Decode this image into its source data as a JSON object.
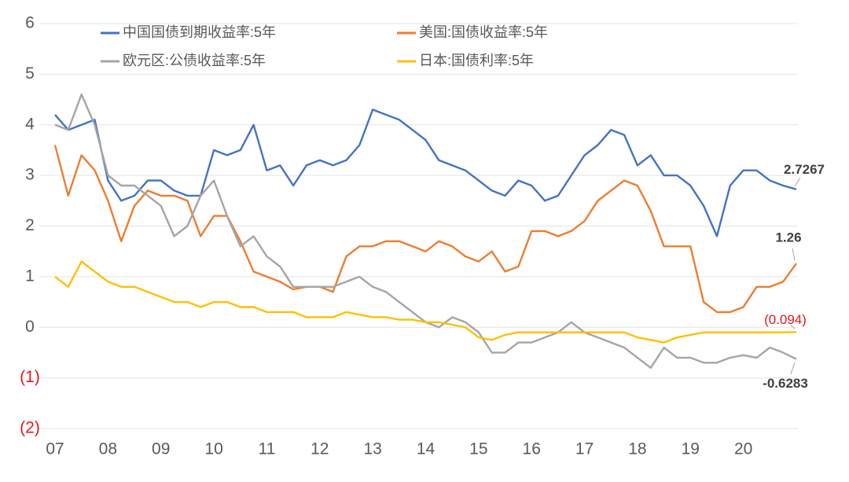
{
  "chart_data": {
    "type": "line",
    "x": [
      7,
      7.25,
      7.5,
      7.75,
      8,
      8.25,
      8.5,
      8.75,
      9,
      9.25,
      9.5,
      9.75,
      10,
      10.25,
      10.5,
      10.75,
      11,
      11.25,
      11.5,
      11.75,
      12,
      12.25,
      12.5,
      12.75,
      13,
      13.25,
      13.5,
      13.75,
      14,
      14.25,
      14.5,
      14.75,
      15,
      15.25,
      15.5,
      15.75,
      16,
      16.25,
      16.5,
      16.75,
      17,
      17.25,
      17.5,
      17.75,
      18,
      18.25,
      18.5,
      18.75,
      19,
      19.25,
      19.5,
      19.75,
      20,
      20.25,
      20.5,
      20.75,
      21
    ],
    "series": [
      {
        "name": "中国国债到期收益率:5年",
        "color": "#4472c4",
        "end_label": "2.7267",
        "values": [
          4.2,
          3.9,
          4.0,
          4.1,
          2.9,
          2.5,
          2.6,
          2.9,
          2.9,
          2.7,
          2.6,
          2.6,
          3.5,
          3.4,
          3.5,
          4.0,
          3.1,
          3.2,
          2.8,
          3.2,
          3.3,
          3.2,
          3.3,
          3.6,
          4.3,
          4.2,
          4.1,
          3.9,
          3.7,
          3.3,
          3.2,
          3.1,
          2.9,
          2.7,
          2.6,
          2.9,
          2.8,
          2.5,
          2.6,
          3.0,
          3.4,
          3.6,
          3.9,
          3.8,
          3.2,
          3.4,
          3.0,
          3.0,
          2.8,
          2.4,
          1.8,
          2.8,
          3.1,
          3.1,
          2.9,
          2.8,
          2.7267
        ]
      },
      {
        "name": "美国:国债收益率:5年",
        "color": "#ed7d31",
        "end_label": "1.26",
        "values": [
          3.6,
          2.6,
          3.4,
          3.1,
          2.5,
          1.7,
          2.4,
          2.7,
          2.6,
          2.6,
          2.5,
          1.8,
          2.2,
          2.2,
          1.7,
          1.1,
          1.0,
          0.9,
          0.75,
          0.8,
          0.8,
          0.7,
          1.4,
          1.6,
          1.6,
          1.7,
          1.7,
          1.6,
          1.5,
          1.7,
          1.6,
          1.4,
          1.3,
          1.5,
          1.1,
          1.2,
          1.9,
          1.9,
          1.8,
          1.9,
          2.1,
          2.5,
          2.7,
          2.9,
          2.8,
          2.3,
          1.6,
          1.6,
          1.6,
          0.5,
          0.3,
          0.3,
          0.4,
          0.8,
          0.8,
          0.9,
          1.26
        ]
      },
      {
        "name": "欧元区:公债收益率:5年",
        "color": "#a5a5a5",
        "end_label": "-0.6283",
        "values": [
          4.0,
          3.9,
          4.6,
          4.0,
          3.0,
          2.8,
          2.8,
          2.6,
          2.4,
          1.8,
          2.0,
          2.6,
          2.9,
          2.2,
          1.6,
          1.8,
          1.4,
          1.2,
          0.8,
          0.8,
          0.8,
          0.8,
          0.9,
          1.0,
          0.8,
          0.7,
          0.5,
          0.3,
          0.1,
          0.0,
          0.2,
          0.1,
          -0.1,
          -0.5,
          -0.5,
          -0.3,
          -0.3,
          -0.2,
          -0.1,
          0.1,
          -0.1,
          -0.2,
          -0.3,
          -0.4,
          -0.6,
          -0.8,
          -0.4,
          -0.6,
          -0.6,
          -0.7,
          -0.7,
          -0.6,
          -0.55,
          -0.6,
          -0.4,
          -0.5,
          -0.6283
        ]
      },
      {
        "name": "日本:国债利率:5年",
        "color": "#ffc000",
        "end_label": "(0.094)",
        "values": [
          1.0,
          0.8,
          1.3,
          1.1,
          0.9,
          0.8,
          0.8,
          0.7,
          0.6,
          0.5,
          0.5,
          0.4,
          0.5,
          0.5,
          0.4,
          0.4,
          0.3,
          0.3,
          0.3,
          0.2,
          0.2,
          0.2,
          0.3,
          0.25,
          0.2,
          0.2,
          0.15,
          0.15,
          0.1,
          0.1,
          0.05,
          0.0,
          -0.2,
          -0.25,
          -0.15,
          -0.1,
          -0.1,
          -0.1,
          -0.1,
          -0.1,
          -0.1,
          -0.1,
          -0.1,
          -0.1,
          -0.2,
          -0.25,
          -0.3,
          -0.2,
          -0.15,
          -0.1,
          -0.1,
          -0.1,
          -0.1,
          -0.1,
          -0.1,
          -0.1,
          -0.094
        ]
      }
    ],
    "xlim": [
      7,
      21
    ],
    "xticks": [
      {
        "value": 7,
        "label": "07"
      },
      {
        "value": 8,
        "label": "08"
      },
      {
        "value": 9,
        "label": "09"
      },
      10,
      11,
      12,
      13,
      14,
      15,
      16,
      17,
      18,
      19,
      20
    ],
    "ylim": [
      -2,
      6
    ],
    "yticks": [
      6,
      5,
      4,
      3,
      2,
      1,
      0,
      {
        "value": -1,
        "label": "(1)"
      },
      {
        "value": -2,
        "label": "(2)"
      }
    ],
    "grid": true,
    "legend": "top"
  }
}
